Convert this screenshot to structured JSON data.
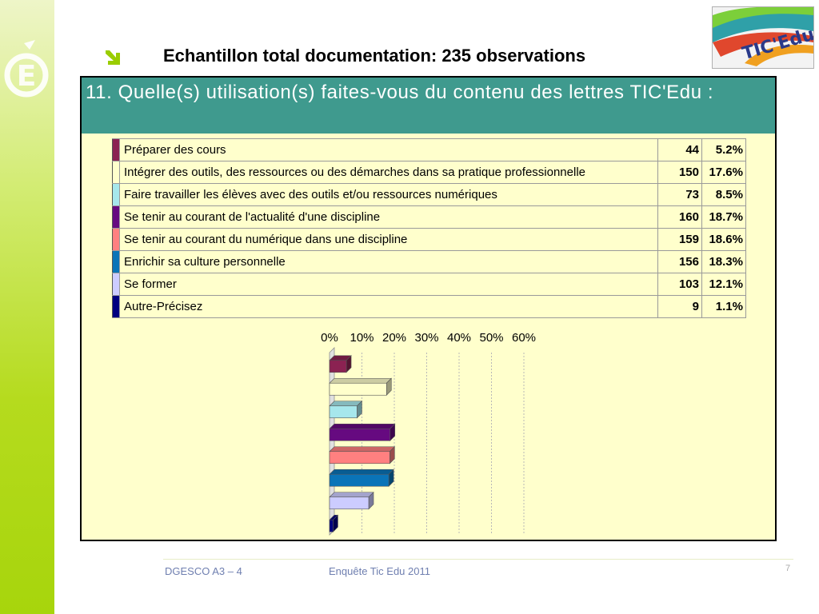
{
  "header": {
    "title": "Echantillon total documentation: 235 observations",
    "logo_text": "TIC'Edu",
    "accent_color": "#3f9a8e"
  },
  "question": {
    "text": "11.  Quelle(s) utilisation(s) faites-vous du contenu des lettres TIC'Edu :"
  },
  "rows": [
    {
      "label": "Préparer des cours",
      "count": "44",
      "percent": "5.2%",
      "value": 5.2,
      "color": "#8b2252"
    },
    {
      "label": "Intégrer des outils, des ressources ou des démarches dans sa pratique professionnelle",
      "count": "150",
      "percent": "17.6%",
      "value": 17.6,
      "color": "#ffffcc"
    },
    {
      "label": "Faire travailler les élèves avec des outils et/ou ressources numériques",
      "count": "73",
      "percent": "8.5%",
      "value": 8.5,
      "color": "#a6e7ec"
    },
    {
      "label": "Se tenir au courant de l'actualité d'une discipline",
      "count": "160",
      "percent": "18.7%",
      "value": 18.7,
      "color": "#660a80"
    },
    {
      "label": "Se tenir au courant du numérique dans une discipline",
      "count": "159",
      "percent": "18.6%",
      "value": 18.6,
      "color": "#ff8080"
    },
    {
      "label": "Enrichir sa culture personnelle",
      "count": "156",
      "percent": "18.3%",
      "value": 18.3,
      "color": "#0a74b8"
    },
    {
      "label": "Se former",
      "count": "103",
      "percent": "12.1%",
      "value": 12.1,
      "color": "#ccccff"
    },
    {
      "label": "Autre-Précisez",
      "count": "9",
      "percent": "1.1%",
      "value": 1.1,
      "color": "#000080"
    }
  ],
  "chart_data": {
    "type": "bar",
    "orientation": "horizontal",
    "categories": [
      "Préparer des cours",
      "Intégrer des outils, des ressources ou des démarches dans sa pratique professionnelle",
      "Faire travailler les élèves avec des outils et/ou ressources numériques",
      "Se tenir au courant de l'actualité d'une discipline",
      "Se tenir au courant du numérique dans une discipline",
      "Enrichir sa culture personnelle",
      "Se former",
      "Autre-Précisez"
    ],
    "values": [
      5.2,
      17.6,
      8.5,
      18.7,
      18.6,
      18.3,
      12.1,
      1.1
    ],
    "colors": [
      "#8b2252",
      "#ffffcc",
      "#a6e7ec",
      "#660a80",
      "#ff8080",
      "#0a74b8",
      "#ccccff",
      "#000080"
    ],
    "x_ticks": [
      "0%",
      "10%",
      "20%",
      "30%",
      "40%",
      "50%",
      "60%"
    ],
    "xlim": [
      0,
      60
    ],
    "grid": true,
    "title": "",
    "xlabel": "",
    "ylabel": ""
  },
  "footer": {
    "left": "DGESCO A3 – 4",
    "center": "Enquête Tic Edu 2011",
    "page": "7"
  }
}
